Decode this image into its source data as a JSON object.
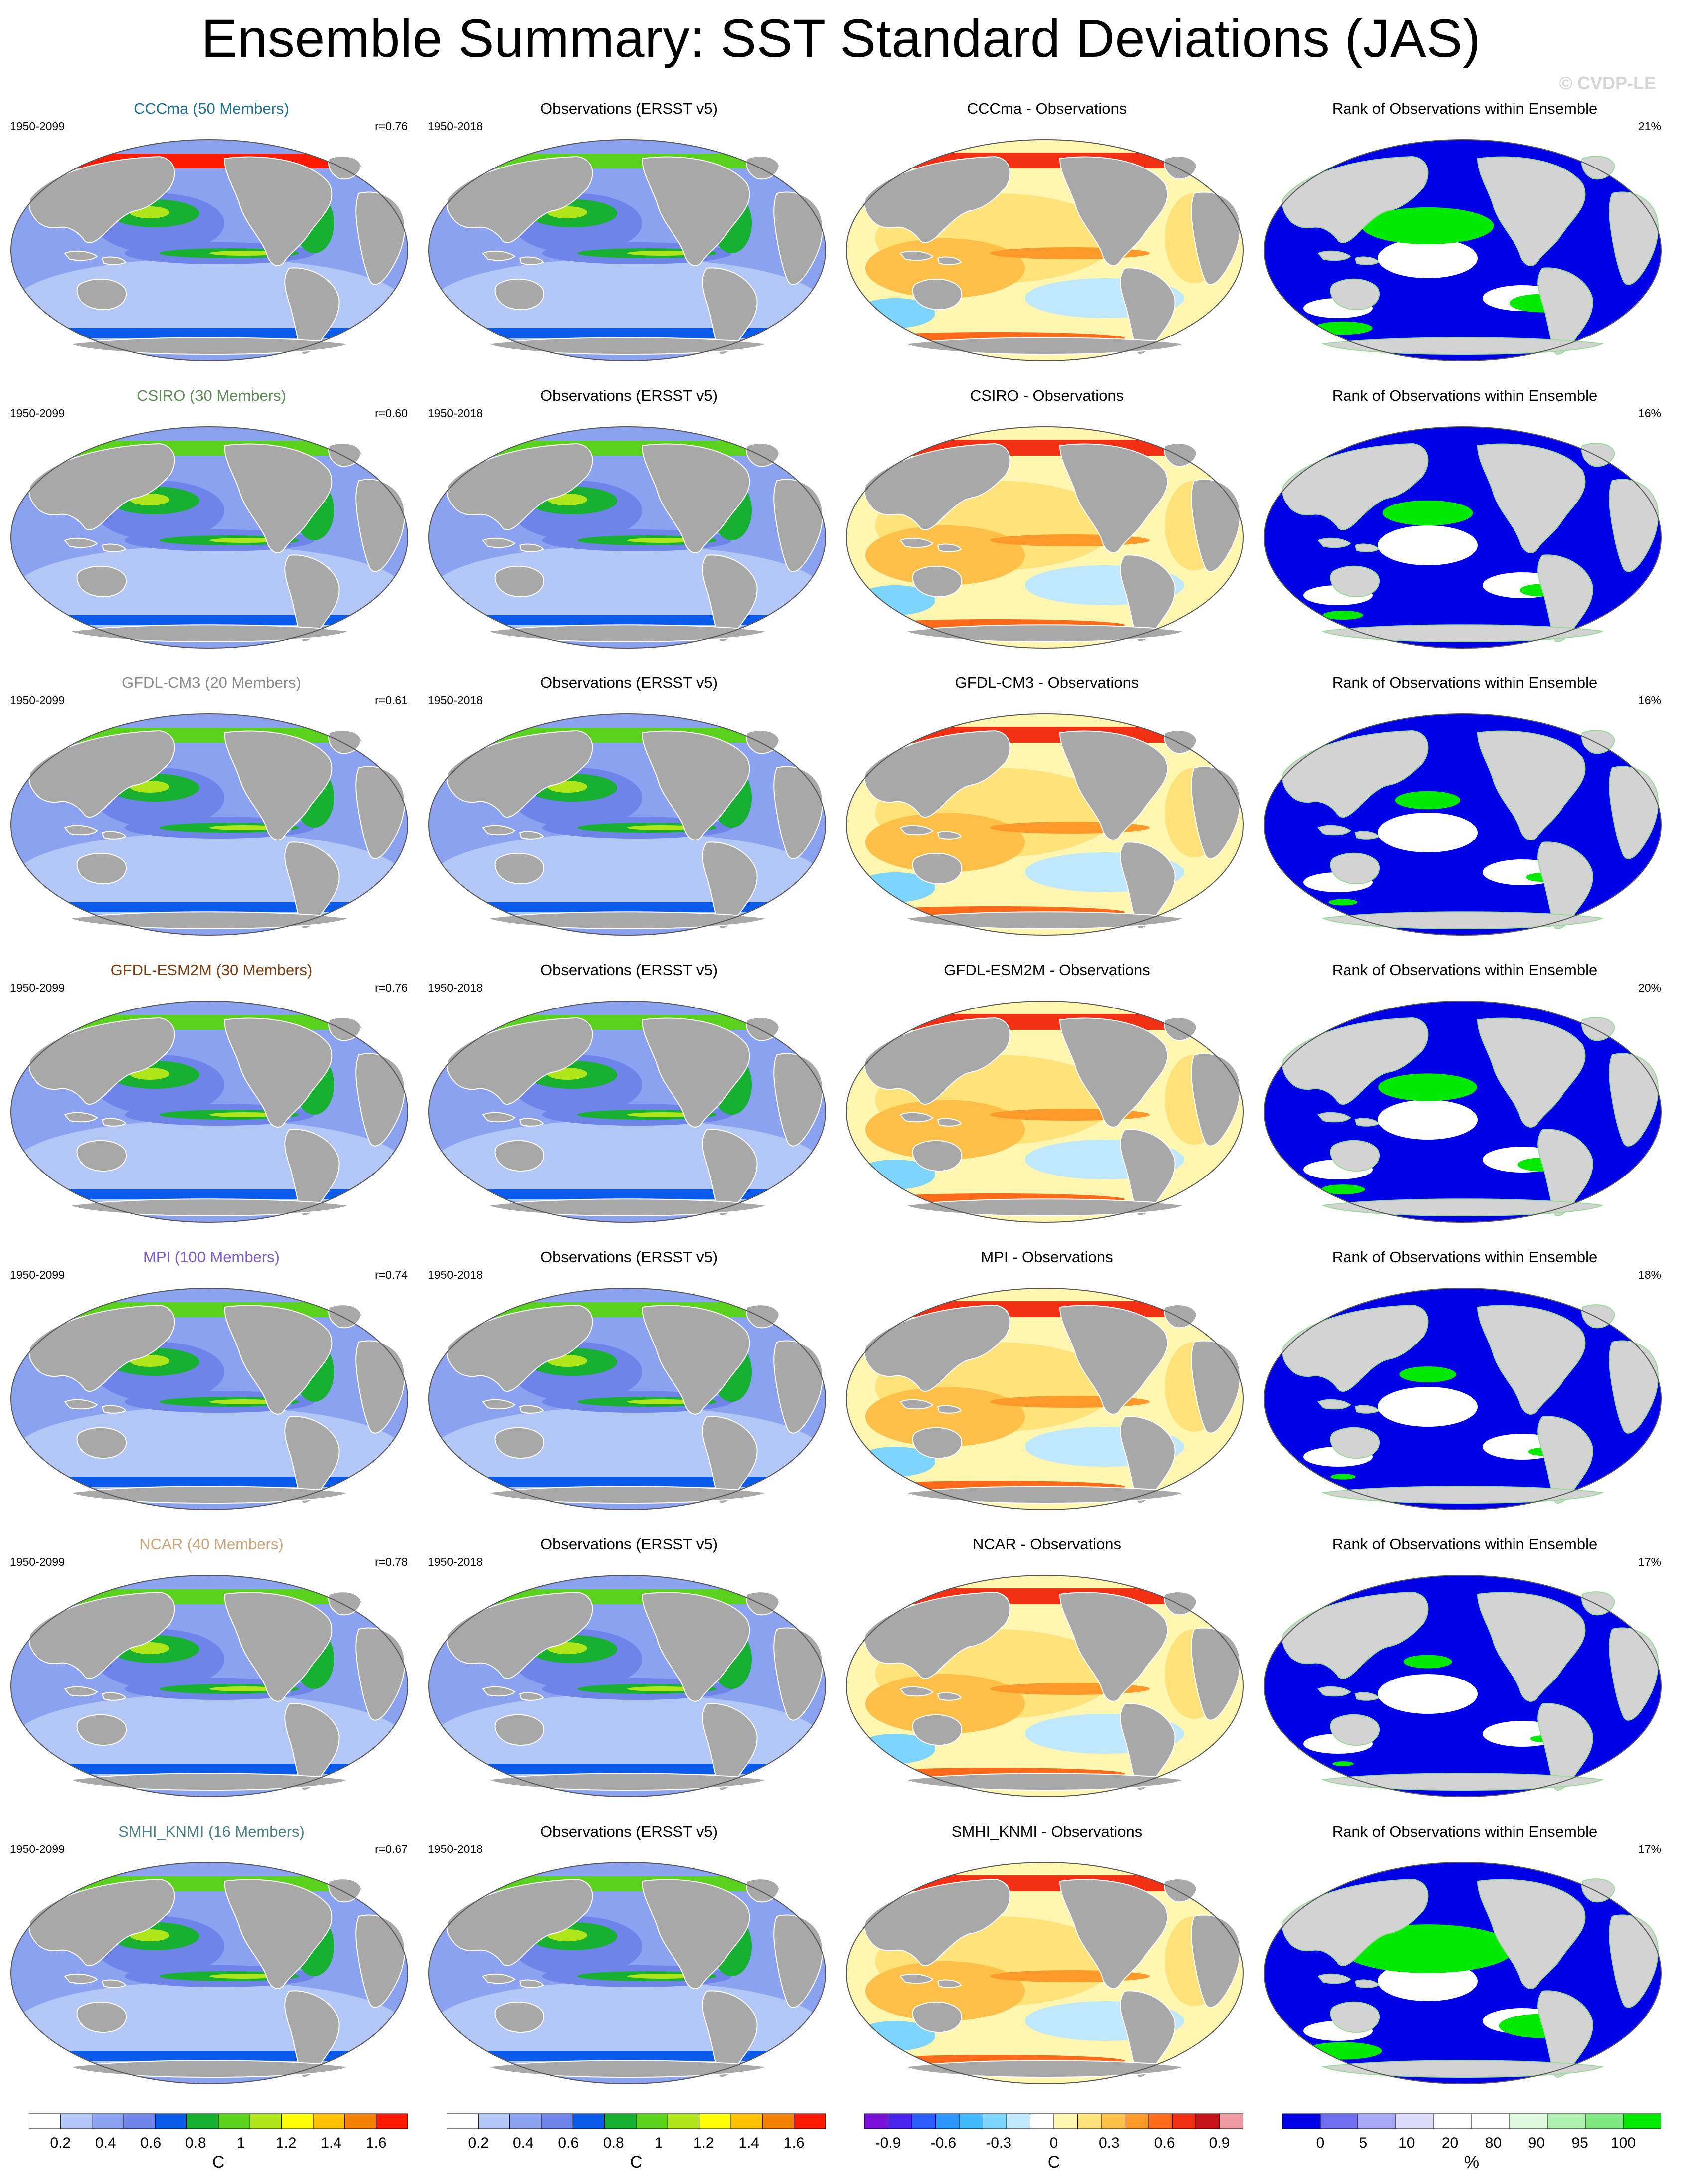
{
  "title": "Ensemble Summary: SST Standard Deviations (JAS)",
  "watermark": "© CVDP-LE",
  "column_titles": {
    "obs": "Observations (ERSST v5)",
    "rank": "Rank of Observations within Ensemble"
  },
  "colors": {
    "land_model": "#a8a8a8",
    "land_rank": "#d3d3d3",
    "sd_palette": [
      "#ffffff",
      "#b3c7f7",
      "#8aa2f0",
      "#6e84e8",
      "#0b5bea",
      "#18b030",
      "#5ad11c",
      "#b0e51a",
      "#ffff00",
      "#ffc000",
      "#f38000",
      "#ff1a00"
    ],
    "diff_palette": [
      "#7a10d9",
      "#4b24f0",
      "#2b5cff",
      "#2c94ff",
      "#41b8ff",
      "#7dd4ff",
      "#bfe8ff",
      "#ffffff",
      "#fff6b0",
      "#ffe27a",
      "#ffc04a",
      "#ff9a2a",
      "#ff6a1a",
      "#f13014",
      "#c6141a",
      "#ee9aa0"
    ],
    "rank_palette": [
      "#0000e6",
      "#6f6ff0",
      "#a8a8f4",
      "#dcdcfa",
      "#ffffff",
      "#ffffff",
      "#dff9df",
      "#b0f0b0",
      "#7fe77f",
      "#00ea00"
    ]
  },
  "rows": [
    {
      "model": "CCCma (50 Members)",
      "model_short": "CCCma",
      "title_color": "#1f6e8c",
      "model_period": "1950-2099",
      "obs_period": "1950-2018",
      "r": "r=0.76",
      "rank_pct": "21%",
      "green_frac": 0.22
    },
    {
      "model": "CSIRO (30 Members)",
      "model_short": "CSIRO",
      "title_color": "#5d8a56",
      "model_period": "1950-2099",
      "obs_period": "1950-2018",
      "r": "r=0.60",
      "rank_pct": "16%",
      "green_frac": 0.12
    },
    {
      "model": "GFDL-CM3 (20 Members)",
      "model_short": "GFDL-CM3",
      "title_color": "#8a8a8a",
      "model_period": "1950-2099",
      "obs_period": "1950-2018",
      "r": "r=0.61",
      "rank_pct": "16%",
      "green_frac": 0.06
    },
    {
      "model": "GFDL-ESM2M (30 Members)",
      "model_short": "GFDL-ESM2M",
      "title_color": "#7a3d12",
      "model_period": "1950-2099",
      "obs_period": "1950-2018",
      "r": "r=0.76",
      "rank_pct": "20%",
      "green_frac": 0.14
    },
    {
      "model": "MPI (100 Members)",
      "model_short": "MPI",
      "title_color": "#7c5cc4",
      "model_period": "1950-2099",
      "obs_period": "1950-2018",
      "r": "r=0.74",
      "rank_pct": "18%",
      "green_frac": 0.04
    },
    {
      "model": "NCAR (40 Members)",
      "model_short": "NCAR",
      "title_color": "#c9a57a",
      "model_period": "1950-2099",
      "obs_period": "1950-2018",
      "r": "r=0.78",
      "rank_pct": "17%",
      "green_frac": 0.02
    },
    {
      "model": "SMHI_KNMI (16 Members)",
      "model_short": "SMHI_KNMI",
      "title_color": "#4a7f7f",
      "model_period": "1950-2099",
      "obs_period": "1950-2018",
      "r": "r=0.67",
      "rank_pct": "17%",
      "green_frac": 0.32
    }
  ],
  "diff_suffix": " - Observations",
  "colorbars": [
    {
      "name": "model-sd",
      "labels": [
        "0.2",
        "0.4",
        "0.6",
        "0.8",
        "1",
        "1.2",
        "1.4",
        "1.6"
      ],
      "unit": "C",
      "palette": "sd_palette"
    },
    {
      "name": "obs-sd",
      "labels": [
        "0.2",
        "0.4",
        "0.6",
        "0.8",
        "1",
        "1.2",
        "1.4",
        "1.6"
      ],
      "unit": "C",
      "palette": "sd_palette"
    },
    {
      "name": "difference",
      "labels": [
        "-0.9",
        "-0.6",
        "-0.3",
        "0",
        "0.3",
        "0.6",
        "0.9"
      ],
      "unit": "C",
      "palette": "diff_palette"
    },
    {
      "name": "rank",
      "labels": [
        "0",
        "5",
        "10",
        "20",
        "80",
        "90",
        "95",
        "100"
      ],
      "unit": "%",
      "palette": "rank_palette"
    }
  ]
}
